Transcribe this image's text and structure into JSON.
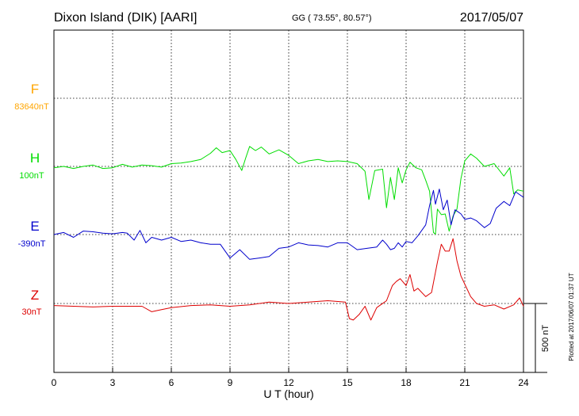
{
  "header": {
    "station": "Dixon Island (DIK)  [AARI]",
    "coords": "GG ( 73.55°,  80.57°)",
    "date": "2017/05/07"
  },
  "footer": {
    "xlabel": "U T (hour)",
    "scale_label": "500 nT",
    "plotted_note": "Plotted at 2017/06/07 01:37 UT"
  },
  "colors": {
    "F": "#ffa500",
    "H": "#00dd00",
    "E": "#0000cc",
    "Z": "#dd0000",
    "grid": "#000000"
  },
  "chart_data": {
    "type": "line",
    "title": "Dixon Island (DIK)  [AARI]",
    "xlabel": "U T (hour)",
    "ylabel": "",
    "xlim": [
      0,
      24
    ],
    "x_ticks": [
      "0",
      "3",
      "6",
      "9",
      "12",
      "15",
      "18",
      "21",
      "24"
    ],
    "grid": true,
    "scale_bar_nT": 500,
    "series": [
      {
        "name": "F",
        "baseline_label": "83640nT",
        "color": "#ffa500",
        "x": [],
        "y": []
      },
      {
        "name": "H",
        "baseline_label": "100nT",
        "color": "#00dd00",
        "x": [
          0,
          0.5,
          1,
          1.5,
          2,
          2.5,
          3,
          3.5,
          4,
          4.5,
          5,
          5.5,
          6,
          6.5,
          7,
          7.5,
          8,
          8.3,
          8.6,
          9,
          9.3,
          9.6,
          9.8,
          10,
          10.3,
          10.6,
          11,
          11.5,
          12,
          12.5,
          13,
          13.5,
          14,
          14.5,
          15,
          15.5,
          15.9,
          16.1,
          16.4,
          16.8,
          17,
          17.2,
          17.4,
          17.6,
          17.8,
          18,
          18.2,
          18.5,
          18.8,
          19,
          19.2,
          19.4,
          19.5,
          19.6,
          19.8,
          20,
          20.2,
          20.4,
          20.6,
          20.8,
          21,
          21.3,
          21.6,
          22,
          22.5,
          23,
          23.3,
          23.5,
          23.7,
          24
        ],
        "y": [
          -10,
          0,
          -15,
          0,
          10,
          -15,
          -10,
          15,
          -5,
          10,
          5,
          -5,
          20,
          25,
          35,
          50,
          95,
          135,
          100,
          115,
          50,
          -30,
          60,
          145,
          115,
          140,
          90,
          120,
          80,
          20,
          40,
          50,
          35,
          40,
          35,
          20,
          -35,
          -240,
          -30,
          -20,
          -300,
          -80,
          -240,
          -10,
          -120,
          -25,
          30,
          -10,
          -25,
          -100,
          -180,
          -480,
          -490,
          -310,
          -350,
          -345,
          -470,
          -360,
          -310,
          -90,
          40,
          90,
          60,
          0,
          20,
          -70,
          -10,
          -200,
          -170,
          -180
        ]
      },
      {
        "name": "E",
        "baseline_label": "-390nT",
        "color": "#0000cc",
        "x": [
          0,
          0.5,
          1,
          1.5,
          2,
          2.5,
          3,
          3.5,
          3.75,
          4.1,
          4.4,
          4.7,
          5,
          5.5,
          6,
          6.5,
          7,
          7.5,
          8,
          8.5,
          9,
          9.5,
          10,
          10.5,
          11,
          11.5,
          12,
          12.5,
          13,
          13.5,
          14,
          14.5,
          15,
          15.5,
          16,
          16.5,
          16.8,
          17,
          17.2,
          17.4,
          17.6,
          17.8,
          18,
          18.3,
          18.6,
          19,
          19.2,
          19.4,
          19.5,
          19.7,
          19.9,
          20.1,
          20.3,
          20.5,
          20.8,
          21,
          21.3,
          21.6,
          22,
          22.3,
          22.6,
          23,
          23.3,
          23.6,
          24
        ],
        "y": [
          0,
          15,
          -20,
          25,
          20,
          10,
          5,
          15,
          10,
          -40,
          30,
          -60,
          -20,
          -40,
          -20,
          -50,
          -40,
          -60,
          -70,
          -70,
          -170,
          -110,
          -180,
          -170,
          -160,
          -100,
          -90,
          -60,
          -75,
          -80,
          -90,
          -60,
          -60,
          -110,
          -100,
          -90,
          -40,
          -70,
          -110,
          -100,
          -60,
          -90,
          -50,
          -60,
          -10,
          70,
          210,
          320,
          220,
          330,
          180,
          250,
          70,
          180,
          150,
          110,
          120,
          100,
          50,
          80,
          190,
          240,
          210,
          310,
          270
        ]
      },
      {
        "name": "Z",
        "baseline_label": "30nT",
        "color": "#dd0000",
        "x": [
          0,
          1,
          2,
          3,
          3.8,
          4.2,
          4.5,
          5,
          5.5,
          6,
          7,
          8,
          9,
          10,
          11,
          12,
          13,
          14,
          14.9,
          15.1,
          15.3,
          15.6,
          15.9,
          16.2,
          16.5,
          17,
          17.3,
          17.5,
          17.7,
          18,
          18.2,
          18.4,
          18.6,
          19,
          19.3,
          19.6,
          19.8,
          20,
          20.2,
          20.4,
          20.6,
          20.8,
          21,
          21.3,
          21.6,
          22,
          22.5,
          23,
          23.5,
          23.8,
          24
        ],
        "y": [
          -15,
          -20,
          -25,
          -20,
          -20,
          -20,
          -20,
          -60,
          -45,
          -30,
          -15,
          -10,
          -20,
          -10,
          10,
          0,
          10,
          20,
          10,
          -110,
          -120,
          -80,
          -20,
          -120,
          -30,
          20,
          130,
          160,
          180,
          130,
          210,
          90,
          110,
          50,
          80,
          300,
          430,
          380,
          380,
          470,
          310,
          200,
          140,
          50,
          0,
          -20,
          -10,
          -40,
          -10,
          40,
          -20
        ]
      }
    ]
  }
}
